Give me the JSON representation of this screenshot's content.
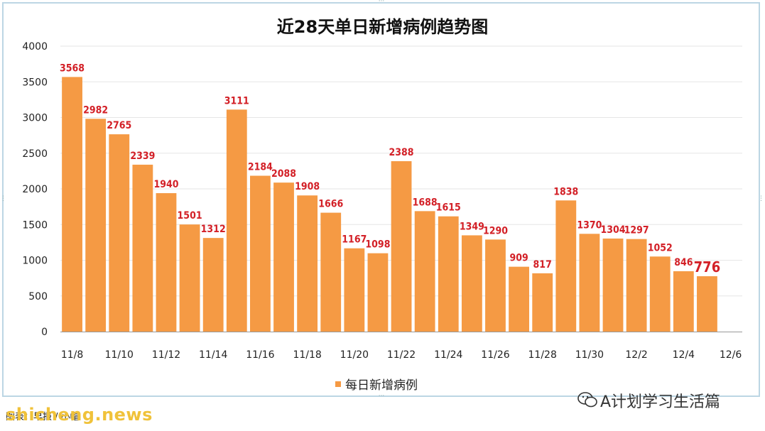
{
  "chart_data": {
    "type": "bar",
    "title": "近28天单日新增病例趋势图",
    "categories": [
      "11/8",
      "11/9",
      "11/10",
      "11/11",
      "11/12",
      "11/13",
      "11/14",
      "11/15",
      "11/16",
      "11/17",
      "11/18",
      "11/19",
      "11/20",
      "11/21",
      "11/22",
      "11/23",
      "11/24",
      "11/25",
      "11/26",
      "11/27",
      "11/28",
      "11/29",
      "11/30",
      "12/1",
      "12/2",
      "12/3",
      "12/4",
      "12/5"
    ],
    "tick_labels": [
      "11/8",
      "11/10",
      "11/12",
      "11/14",
      "11/16",
      "11/18",
      "11/20",
      "11/22",
      "11/24",
      "11/26",
      "11/28",
      "11/30",
      "12/2",
      "12/4",
      "12/6"
    ],
    "series": [
      {
        "name": "每日新增病例",
        "values": [
          3568,
          2982,
          2765,
          2339,
          1940,
          1501,
          1312,
          3111,
          2184,
          2088,
          1908,
          1666,
          1167,
          1098,
          2388,
          1688,
          1615,
          1349,
          1290,
          909,
          817,
          1838,
          1370,
          1304,
          1297,
          1052,
          846,
          776
        ]
      }
    ],
    "ylim": [
      0,
      4000
    ],
    "yticks": [
      0,
      500,
      1000,
      1500,
      2000,
      2500,
      3000,
      3500,
      4000
    ],
    "grid": true,
    "legend": "bottom",
    "highlight_last_label": true,
    "colors": {
      "bar": "#f59a44",
      "label": "#d32027",
      "grid": "#e6e6e6",
      "axis": "#999999"
    }
  },
  "watermarks": {
    "right": "A计划学习生活篇",
    "left": "图表：早报 / 小帽",
    "site": "shicheng.news"
  }
}
